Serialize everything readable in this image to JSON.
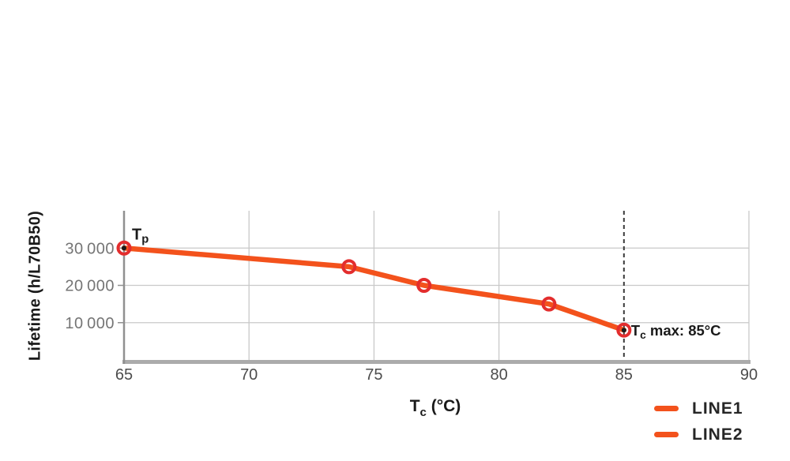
{
  "page": {
    "background": "#ffffff"
  },
  "chart_data": {
    "type": "line",
    "title": "",
    "ylabel": "Lifetime (h/L70B50)",
    "xlabel": {
      "base": "T",
      "sub": "c",
      "rest": " (°C)"
    },
    "xlim": [
      65,
      90
    ],
    "ylim": [
      0,
      40000
    ],
    "grid": true,
    "x_ticks": [
      {
        "v": 65,
        "label": "65"
      },
      {
        "v": 70,
        "label": "70"
      },
      {
        "v": 75,
        "label": "75"
      },
      {
        "v": 80,
        "label": "80"
      },
      {
        "v": 85,
        "label": "85"
      },
      {
        "v": 90,
        "label": "90"
      }
    ],
    "y_ticks": [
      {
        "v": 10000,
        "label": "10 000"
      },
      {
        "v": 20000,
        "label": "20 000"
      },
      {
        "v": 30000,
        "label": "30 000"
      }
    ],
    "series": [
      {
        "name": "LINE1",
        "color": "#f3521c",
        "points": [
          {
            "x": 65,
            "y": 30000
          },
          {
            "x": 74,
            "y": 25000
          },
          {
            "x": 77,
            "y": 20000
          },
          {
            "x": 82,
            "y": 15000
          },
          {
            "x": 85,
            "y": 8000
          }
        ]
      }
    ],
    "marker": {
      "shape": "ring",
      "color": "#e32d2d"
    },
    "vline": {
      "x": 85,
      "style": "dashed",
      "color": "#3a3a3a"
    },
    "annotations": [
      {
        "x": 65,
        "y": 30000,
        "base": "T",
        "sub": "p",
        "rest": "",
        "dot": true,
        "placement": "above-right"
      },
      {
        "x": 85,
        "y": 8000,
        "base": "T",
        "sub": "c",
        "rest": " max: 85°C",
        "dot": true,
        "placement": "right"
      }
    ],
    "legend": {
      "position": "bottom-right",
      "entries": [
        {
          "label": "LINE1",
          "color": "#f3521c"
        },
        {
          "label": "LINE2",
          "color": "#f3521c"
        }
      ]
    },
    "colors": {
      "line": "#f3521c",
      "marker_ring": "#e32d2d",
      "grid": "#c9c9c9",
      "y_axis": "#909090",
      "x_axis": "#ababab",
      "dashed": "#3a3a3a",
      "x_tick_text": "#4c4c4c",
      "y_tick_text": "#757575",
      "label_text": "#1a1a1a",
      "legend_text": "#262626",
      "background": "#ffffff"
    }
  }
}
